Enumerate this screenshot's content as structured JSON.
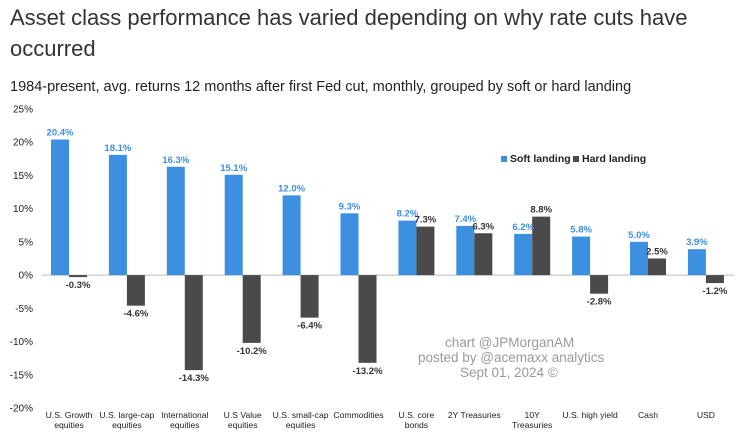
{
  "title": "Asset class performance has varied depending on why rate cuts have occurred",
  "subtitle": "1984-present, avg. returns 12 months after first Fed cut, monthly, grouped by soft or hard landing",
  "watermark": [
    "chart @JPMorganAM",
    "posted by @acemaxx analytics",
    "Sept 01, 2024 ©"
  ],
  "colors": {
    "soft": "#3d8fe0",
    "hard": "#4a4a4a",
    "soft_label": "#3d8fe0",
    "hard_label": "#333333"
  },
  "chart_data": {
    "type": "bar",
    "categories": [
      [
        "U.S. Growth",
        "equities"
      ],
      [
        "U.S. large-cap",
        "equities"
      ],
      [
        "International",
        "equities"
      ],
      [
        "U.S Value",
        "equities"
      ],
      [
        "U.S. small-cap",
        "equities"
      ],
      [
        "Commodities"
      ],
      [
        "U.S. core",
        "bonds"
      ],
      [
        "2Y Treasuries"
      ],
      [
        "10Y",
        "Treasuries"
      ],
      [
        "U.S. high yield"
      ],
      [
        "Cash"
      ],
      [
        "USD"
      ]
    ],
    "series": [
      {
        "name": "Soft landing",
        "values": [
          20.4,
          18.1,
          16.3,
          15.1,
          12.0,
          9.3,
          8.2,
          7.4,
          6.2,
          5.8,
          5.0,
          3.9
        ],
        "labels": [
          "20.4%",
          "18.1%",
          "16.3%",
          "15.1%",
          "12.0%",
          "9.3%",
          "8.2%",
          "7.4%",
          "6.2%",
          "5.8%",
          "5.0%",
          "3.9%"
        ]
      },
      {
        "name": "Hard landing",
        "values": [
          -0.3,
          -4.6,
          -14.3,
          -10.2,
          -6.4,
          -13.2,
          7.3,
          6.3,
          8.8,
          -2.8,
          2.5,
          -1.2
        ],
        "labels": [
          "-0.3%",
          "-4.6%",
          "-14.3%",
          "-10.2%",
          "-6.4%",
          "-13.2%",
          "7.3%",
          "6.3%",
          "8.8%",
          "-2.8%",
          "2.5%",
          "-1.2%"
        ]
      }
    ],
    "y_ticks": [
      25,
      20,
      15,
      10,
      5,
      0,
      -5,
      -10,
      -15,
      -20
    ],
    "y_tick_labels": [
      "25%",
      "20%",
      "15%",
      "10%",
      "5%",
      "0%",
      "-5%",
      "-10%",
      "-15%",
      "-20%"
    ],
    "ylim": [
      -20,
      25
    ],
    "grid": false,
    "legend_position": "top-right"
  }
}
